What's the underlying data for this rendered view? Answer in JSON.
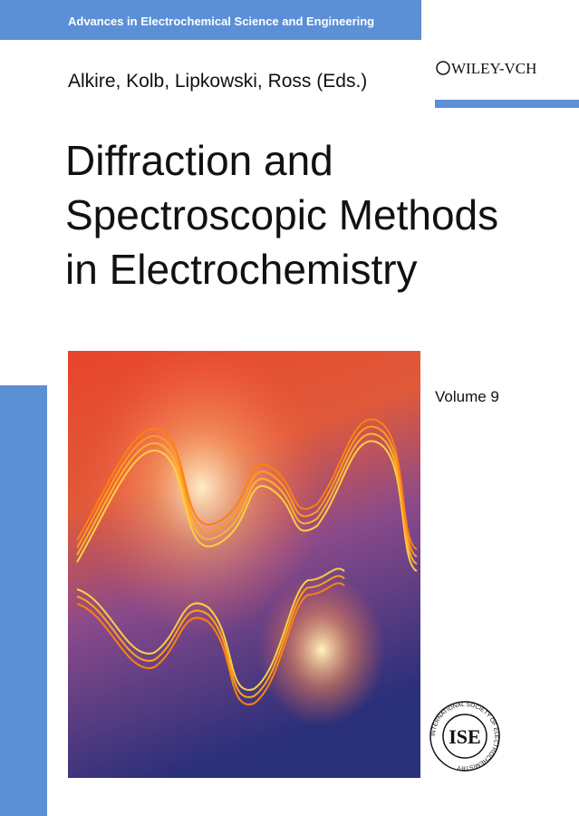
{
  "series": {
    "title": "Advances in Electrochemical Science and Engineering"
  },
  "editors": "Alkire, Kolb, Lipkowski, Ross (Eds.)",
  "publisher": "WILEY-VCH",
  "title": {
    "lines": [
      "Diffraction and",
      "Spectroscopic Methods",
      "in Electrochemistry"
    ]
  },
  "volume": "Volume 9",
  "society_logo": {
    "abbreviation": "ISE",
    "ring_text": "INTERNATIONAL SOCIETY OF ELECTROCHEMISTRY"
  }
}
